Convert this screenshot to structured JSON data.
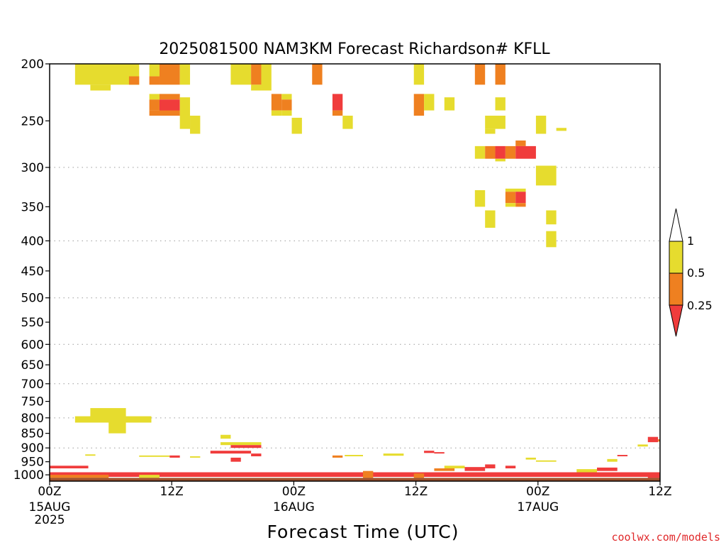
{
  "chart_data": {
    "type": "heatmap",
    "title": "2025081500 NAM3KM Forecast Richardson# KFLL",
    "xlabel": "Forecast Time (UTC)",
    "ylabel": "",
    "x_unit": "hours since 2025-08-15 00Z",
    "xlim": [
      0,
      60
    ],
    "ylim": [
      1025,
      200
    ],
    "y_scale": "log",
    "x_ticks": [
      {
        "value": 0,
        "label": "00Z",
        "date": "15AUG",
        "year": "2025"
      },
      {
        "value": 12,
        "label": "12Z",
        "date": "",
        "year": ""
      },
      {
        "value": 24,
        "label": "00Z",
        "date": "16AUG",
        "year": ""
      },
      {
        "value": 36,
        "label": "12Z",
        "date": "",
        "year": ""
      },
      {
        "value": 48,
        "label": "00Z",
        "date": "17AUG",
        "year": ""
      },
      {
        "value": 60,
        "label": "12Z",
        "date": "",
        "year": ""
      }
    ],
    "y_ticks": [
      200,
      250,
      300,
      350,
      400,
      450,
      500,
      550,
      600,
      650,
      700,
      750,
      800,
      850,
      900,
      950,
      1000
    ],
    "y_gridlines": [
      300,
      400,
      500,
      600,
      700,
      800,
      900
    ],
    "grid": true,
    "legend": {
      "position": "right",
      "levels": [
        "1",
        "0.5",
        "0.25"
      ],
      "colors": {
        "lt_025": "#f03c3c",
        "025_05": "#ef8020",
        "05_1": "#e6dc2e",
        "gt_1": "#ffffff"
      }
    },
    "ground_color": "#a0522d",
    "cells": [
      {
        "t0": 2.5,
        "t1": 8.8,
        "p0": 200,
        "p1": 217,
        "c": "y"
      },
      {
        "t0": 4.0,
        "t1": 6.0,
        "p0": 217,
        "p1": 222,
        "c": "y"
      },
      {
        "t0": 7.8,
        "t1": 8.8,
        "p0": 210,
        "p1": 217,
        "c": "o"
      },
      {
        "t0": 9.8,
        "t1": 10.8,
        "p0": 200,
        "p1": 210,
        "c": "y"
      },
      {
        "t0": 9.8,
        "t1": 10.8,
        "p0": 210,
        "p1": 217,
        "c": "o"
      },
      {
        "t0": 10.8,
        "t1": 12.8,
        "p0": 200,
        "p1": 217,
        "c": "o"
      },
      {
        "t0": 12.8,
        "t1": 13.8,
        "p0": 200,
        "p1": 217,
        "c": "y"
      },
      {
        "t0": 9.8,
        "t1": 10.8,
        "p0": 225,
        "p1": 230,
        "c": "y"
      },
      {
        "t0": 9.8,
        "t1": 10.8,
        "p0": 230,
        "p1": 240,
        "c": "o"
      },
      {
        "t0": 10.8,
        "t1": 12.8,
        "p0": 225,
        "p1": 230,
        "c": "o"
      },
      {
        "t0": 10.8,
        "t1": 12.8,
        "p0": 230,
        "p1": 245,
        "c": "r"
      },
      {
        "t0": 9.8,
        "t1": 12.8,
        "p0": 240,
        "p1": 245,
        "c": "o"
      },
      {
        "t0": 12.8,
        "t1": 13.8,
        "p0": 228,
        "p1": 258,
        "c": "y"
      },
      {
        "t0": 13.8,
        "t1": 14.8,
        "p0": 245,
        "p1": 263,
        "c": "y"
      },
      {
        "t0": 17.8,
        "t1": 19.8,
        "p0": 200,
        "p1": 217,
        "c": "y"
      },
      {
        "t0": 19.8,
        "t1": 20.8,
        "p0": 200,
        "p1": 217,
        "c": "o"
      },
      {
        "t0": 19.8,
        "t1": 20.8,
        "p0": 217,
        "p1": 222,
        "c": "y"
      },
      {
        "t0": 20.8,
        "t1": 21.8,
        "p0": 200,
        "p1": 222,
        "c": "y"
      },
      {
        "t0": 21.8,
        "t1": 22.8,
        "p0": 225,
        "p1": 240,
        "c": "o"
      },
      {
        "t0": 21.8,
        "t1": 22.8,
        "p0": 240,
        "p1": 245,
        "c": "y"
      },
      {
        "t0": 22.8,
        "t1": 23.8,
        "p0": 225,
        "p1": 230,
        "c": "y"
      },
      {
        "t0": 22.8,
        "t1": 23.8,
        "p0": 230,
        "p1": 240,
        "c": "o"
      },
      {
        "t0": 22.8,
        "t1": 23.8,
        "p0": 240,
        "p1": 245,
        "c": "y"
      },
      {
        "t0": 23.8,
        "t1": 24.8,
        "p0": 247,
        "p1": 263,
        "c": "y"
      },
      {
        "t0": 25.8,
        "t1": 26.8,
        "p0": 200,
        "p1": 217,
        "c": "o"
      },
      {
        "t0": 27.8,
        "t1": 28.8,
        "p0": 225,
        "p1": 240,
        "c": "r"
      },
      {
        "t0": 27.8,
        "t1": 28.8,
        "p0": 240,
        "p1": 245,
        "c": "o"
      },
      {
        "t0": 28.8,
        "t1": 29.8,
        "p0": 245,
        "p1": 258,
        "c": "y"
      },
      {
        "t0": 35.8,
        "t1": 36.8,
        "p0": 200,
        "p1": 217,
        "c": "y"
      },
      {
        "t0": 35.8,
        "t1": 36.8,
        "p0": 225,
        "p1": 245,
        "c": "o"
      },
      {
        "t0": 36.8,
        "t1": 37.8,
        "p0": 225,
        "p1": 240,
        "c": "y"
      },
      {
        "t0": 38.8,
        "t1": 39.8,
        "p0": 228,
        "p1": 240,
        "c": "y"
      },
      {
        "t0": 41.8,
        "t1": 42.8,
        "p0": 200,
        "p1": 217,
        "c": "o"
      },
      {
        "t0": 43.8,
        "t1": 44.8,
        "p0": 200,
        "p1": 217,
        "c": "o"
      },
      {
        "t0": 42.8,
        "t1": 44.8,
        "p0": 245,
        "p1": 258,
        "c": "y"
      },
      {
        "t0": 42.8,
        "t1": 43.8,
        "p0": 258,
        "p1": 263,
        "c": "y"
      },
      {
        "t0": 43.8,
        "t1": 44.8,
        "p0": 228,
        "p1": 240,
        "c": "y"
      },
      {
        "t0": 41.8,
        "t1": 42.8,
        "p0": 276,
        "p1": 290,
        "c": "y"
      },
      {
        "t0": 42.8,
        "t1": 43.8,
        "p0": 276,
        "p1": 290,
        "c": "o"
      },
      {
        "t0": 43.8,
        "t1": 44.8,
        "p0": 276,
        "p1": 290,
        "c": "r"
      },
      {
        "t0": 43.8,
        "t1": 44.8,
        "p0": 290,
        "p1": 293,
        "c": "y"
      },
      {
        "t0": 44.8,
        "t1": 45.8,
        "p0": 276,
        "p1": 290,
        "c": "o"
      },
      {
        "t0": 45.8,
        "t1": 46.8,
        "p0": 270,
        "p1": 276,
        "c": "o"
      },
      {
        "t0": 45.8,
        "t1": 47.8,
        "p0": 276,
        "p1": 290,
        "c": "r"
      },
      {
        "t0": 47.8,
        "t1": 48.8,
        "p0": 245,
        "p1": 263,
        "c": "y"
      },
      {
        "t0": 49.8,
        "t1": 50.8,
        "p0": 257,
        "p1": 260,
        "c": "y"
      },
      {
        "t0": 47.8,
        "t1": 49.8,
        "p0": 298,
        "p1": 322,
        "c": "y"
      },
      {
        "t0": 41.8,
        "t1": 42.8,
        "p0": 328,
        "p1": 350,
        "c": "y"
      },
      {
        "t0": 44.8,
        "t1": 46.8,
        "p0": 326,
        "p1": 330,
        "c": "y"
      },
      {
        "t0": 44.8,
        "t1": 45.8,
        "p0": 330,
        "p1": 345,
        "c": "o"
      },
      {
        "t0": 44.8,
        "t1": 45.8,
        "p0": 345,
        "p1": 350,
        "c": "y"
      },
      {
        "t0": 45.8,
        "t1": 46.8,
        "p0": 330,
        "p1": 345,
        "c": "r"
      },
      {
        "t0": 45.8,
        "t1": 46.8,
        "p0": 345,
        "p1": 350,
        "c": "o"
      },
      {
        "t0": 42.8,
        "t1": 43.8,
        "p0": 355,
        "p1": 380,
        "c": "y"
      },
      {
        "t0": 48.8,
        "t1": 49.8,
        "p0": 355,
        "p1": 375,
        "c": "y"
      },
      {
        "t0": 48.8,
        "t1": 49.8,
        "p0": 385,
        "p1": 410,
        "c": "y"
      },
      {
        "t0": 4.0,
        "t1": 7.5,
        "p0": 770,
        "p1": 805,
        "c": "y"
      },
      {
        "t0": 2.5,
        "t1": 10.0,
        "p0": 795,
        "p1": 815,
        "c": "y"
      },
      {
        "t0": 5.8,
        "t1": 7.5,
        "p0": 815,
        "p1": 850,
        "c": "y"
      },
      {
        "t0": 16.8,
        "t1": 17.8,
        "p0": 855,
        "p1": 868,
        "c": "y"
      },
      {
        "t0": 16.8,
        "t1": 20.8,
        "p0": 880,
        "p1": 890,
        "c": "y"
      },
      {
        "t0": 17.8,
        "t1": 20.8,
        "p0": 890,
        "p1": 900,
        "c": "r"
      },
      {
        "t0": 15.8,
        "t1": 19.8,
        "p0": 910,
        "p1": 920,
        "c": "r"
      },
      {
        "t0": 19.8,
        "t1": 20.8,
        "p0": 920,
        "p1": 930,
        "c": "r"
      },
      {
        "t0": 17.8,
        "t1": 18.8,
        "p0": 935,
        "p1": 950,
        "c": "r"
      },
      {
        "t0": 3.5,
        "t1": 4.5,
        "p0": 923,
        "p1": 928,
        "c": "y"
      },
      {
        "t0": 8.8,
        "t1": 11.8,
        "p0": 927,
        "p1": 932,
        "c": "y"
      },
      {
        "t0": 11.8,
        "t1": 12.8,
        "p0": 927,
        "p1": 935,
        "c": "r"
      },
      {
        "t0": 13.8,
        "t1": 14.8,
        "p0": 930,
        "p1": 935,
        "c": "y"
      },
      {
        "t0": 27.8,
        "t1": 28.8,
        "p0": 927,
        "p1": 935,
        "c": "o"
      },
      {
        "t0": 29.0,
        "t1": 30.8,
        "p0": 925,
        "p1": 930,
        "c": "y"
      },
      {
        "t0": 32.8,
        "t1": 34.8,
        "p0": 920,
        "p1": 928,
        "c": "y"
      },
      {
        "t0": 36.8,
        "t1": 37.8,
        "p0": 910,
        "p1": 918,
        "c": "r"
      },
      {
        "t0": 37.8,
        "t1": 38.8,
        "p0": 915,
        "p1": 920,
        "c": "r"
      },
      {
        "t0": 55.8,
        "t1": 56.8,
        "p0": 925,
        "p1": 930,
        "c": "r"
      },
      {
        "t0": 57.8,
        "t1": 58.8,
        "p0": 888,
        "p1": 895,
        "c": "y"
      },
      {
        "t0": 58.8,
        "t1": 59.8,
        "p0": 862,
        "p1": 880,
        "c": "r"
      },
      {
        "t0": 59.8,
        "t1": 60.0,
        "p0": 870,
        "p1": 878,
        "c": "o"
      },
      {
        "t0": 47.8,
        "t1": 49.8,
        "p0": 945,
        "p1": 950,
        "c": "y"
      },
      {
        "t0": 46.8,
        "t1": 47.8,
        "p0": 935,
        "p1": 942,
        "c": "y"
      },
      {
        "t0": 54.8,
        "t1": 55.8,
        "p0": 940,
        "p1": 950,
        "c": "y"
      },
      {
        "t0": 0.0,
        "t1": 3.8,
        "p0": 965,
        "p1": 975,
        "c": "r"
      },
      {
        "t0": 0.0,
        "t1": 60.0,
        "p0": 990,
        "p1": 1008,
        "c": "r"
      },
      {
        "t0": 0.0,
        "t1": 5.8,
        "p0": 1000,
        "p1": 1012,
        "c": "o"
      },
      {
        "t0": 8.8,
        "t1": 10.8,
        "p0": 1000,
        "p1": 1012,
        "c": "y"
      },
      {
        "t0": 30.8,
        "t1": 31.8,
        "p0": 985,
        "p1": 1012,
        "c": "o"
      },
      {
        "t0": 35.8,
        "t1": 36.8,
        "p0": 995,
        "p1": 1012,
        "c": "o"
      },
      {
        "t0": 37.8,
        "t1": 39.8,
        "p0": 975,
        "p1": 985,
        "c": "o"
      },
      {
        "t0": 38.8,
        "t1": 40.8,
        "p0": 965,
        "p1": 975,
        "c": "y"
      },
      {
        "t0": 40.8,
        "t1": 42.8,
        "p0": 970,
        "p1": 985,
        "c": "r"
      },
      {
        "t0": 42.8,
        "t1": 43.8,
        "p0": 960,
        "p1": 975,
        "c": "r"
      },
      {
        "t0": 44.8,
        "t1": 45.8,
        "p0": 965,
        "p1": 975,
        "c": "r"
      },
      {
        "t0": 51.8,
        "t1": 53.8,
        "p0": 978,
        "p1": 990,
        "c": "y"
      },
      {
        "t0": 53.8,
        "t1": 55.8,
        "p0": 972,
        "p1": 985,
        "c": "r"
      },
      {
        "t0": 58.8,
        "t1": 60.0,
        "p0": 990,
        "p1": 1012,
        "c": "r"
      },
      {
        "t0": 0.0,
        "t1": 60.0,
        "p0": 1012,
        "p1": 1025,
        "c": "g"
      }
    ]
  },
  "colorbar": {
    "labels": [
      "1",
      "0.5",
      "0.25"
    ]
  },
  "credit": "coolwx.com/models"
}
